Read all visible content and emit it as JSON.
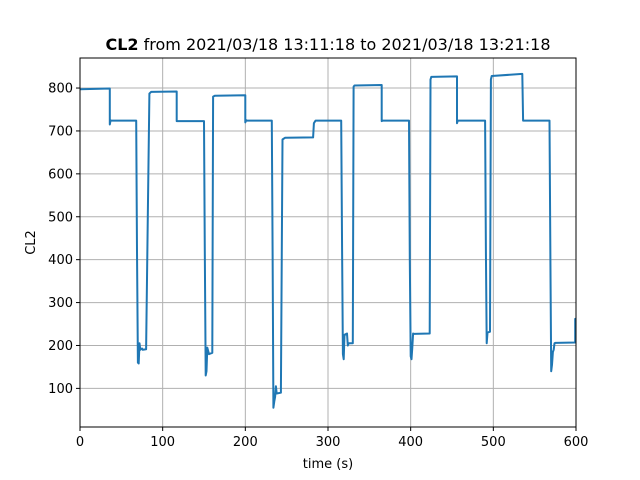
{
  "chart_data": {
    "type": "line",
    "title_bold": "CL2",
    "title_rest": " from 2021/03/18 13:11:18 to 2021/03/18 13:21:18",
    "xlabel": "time (s)",
    "ylabel": "CL2",
    "xlim": [
      0,
      600
    ],
    "ylim": [
      10,
      870
    ],
    "x_ticks": [
      0,
      100,
      200,
      300,
      400,
      500,
      600
    ],
    "y_ticks": [
      100,
      200,
      300,
      400,
      500,
      600,
      700,
      800
    ],
    "grid": true,
    "color": "#1f77b4",
    "series": [
      {
        "x": [
          0,
          36,
          36,
          37,
          37,
          68,
          69,
          70,
          71,
          72,
          73,
          74,
          75,
          76,
          80,
          82,
          84,
          86,
          117,
          117,
          150,
          151,
          152,
          153,
          154,
          156,
          160,
          161,
          163,
          200,
          200,
          201,
          202,
          232,
          233,
          234,
          235,
          236,
          237,
          238,
          243,
          245,
          248,
          282,
          283,
          285,
          316,
          317,
          318,
          319,
          320,
          323,
          324,
          325,
          330,
          331,
          332,
          365,
          365,
          366,
          398,
          399,
          400,
          401,
          402,
          403,
          404,
          423,
          424,
          425,
          456,
          456,
          457,
          490,
          491,
          492,
          493,
          496,
          497,
          498,
          535,
          536,
          568,
          569,
          570,
          571,
          572,
          573,
          574,
          575,
          576,
          599,
          599,
          600
        ],
        "y": [
          797,
          799,
          715,
          725,
          724,
          724,
          420,
          160,
          158,
          205,
          190,
          192,
          193,
          190,
          191,
          500,
          787,
          791,
          792,
          723,
          723,
          420,
          130,
          140,
          195,
          180,
          183,
          780,
          782,
          783,
          720,
          725,
          724,
          724,
          420,
          55,
          70,
          80,
          105,
          88,
          90,
          680,
          684,
          685,
          718,
          724,
          724,
          420,
          180,
          168,
          225,
          228,
          200,
          205,
          205,
          803,
          806,
          807,
          723,
          724,
          724,
          400,
          175,
          168,
          195,
          228,
          227,
          228,
          820,
          826,
          827,
          718,
          724,
          724,
          420,
          205,
          230,
          232,
          820,
          828,
          833,
          724,
          724,
          400,
          140,
          155,
          185,
          190,
          205,
          206,
          206,
          207,
          262,
          262
        ]
      }
    ]
  }
}
